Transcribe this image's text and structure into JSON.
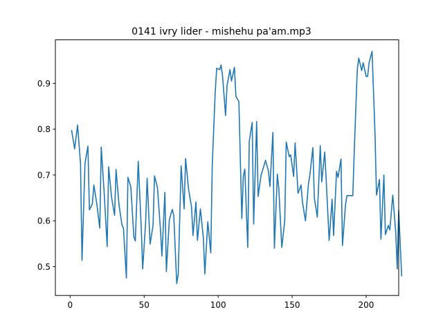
{
  "chart_data": {
    "type": "line",
    "title": "0141 ivry lider - mishehu pa'am.mp3",
    "xlabel": "",
    "ylabel": "",
    "xlim": [
      -10,
      222
    ],
    "ylim": [
      0.437,
      0.995
    ],
    "xticks": [
      0,
      50,
      100,
      150,
      200
    ],
    "yticks": [
      0.5,
      0.6,
      0.7,
      0.8,
      0.9
    ],
    "grid": false,
    "line_color": "#1f77b4",
    "series": [
      {
        "values": [
          0.797,
          0.757,
          0.809,
          0.725,
          0.514,
          0.725,
          0.763,
          0.624,
          0.637,
          0.678,
          0.637,
          0.584,
          0.761,
          0.66,
          0.544,
          0.718,
          0.65,
          0.612,
          0.712,
          0.635,
          0.591,
          0.584,
          0.475,
          0.695,
          0.674,
          0.566,
          0.556,
          0.73,
          0.587,
          0.495,
          0.597,
          0.693,
          0.549,
          0.59,
          0.698,
          0.672,
          0.581,
          0.523,
          0.662,
          0.489,
          0.602,
          0.625,
          0.612,
          0.463,
          0.483,
          0.72,
          0.626,
          0.736,
          0.669,
          0.63,
          0.568,
          0.641,
          0.557,
          0.626,
          0.563,
          0.484,
          0.598,
          0.53,
          0.72,
          0.88,
          0.933,
          0.93,
          0.94,
          0.915,
          0.83,
          0.895,
          0.93,
          0.905,
          0.935,
          0.872,
          0.86,
          0.605,
          0.697,
          0.713,
          0.542,
          0.773,
          0.815,
          0.593,
          0.817,
          0.653,
          0.7,
          0.71,
          0.732,
          0.708,
          0.675,
          0.793,
          0.54,
          0.702,
          0.67,
          0.542,
          0.6,
          0.772,
          0.74,
          0.744,
          0.697,
          0.77,
          0.66,
          0.678,
          0.64,
          0.6,
          0.68,
          0.7,
          0.76,
          0.65,
          0.608,
          0.764,
          0.685,
          0.75,
          0.69,
          0.557,
          0.647,
          0.568,
          0.708,
          0.695,
          0.735,
          0.546,
          0.633,
          0.655,
          0.655,
          0.655,
          0.755,
          0.93,
          0.955,
          0.928,
          0.945,
          0.915,
          0.915,
          0.945,
          0.97,
          0.79,
          0.656,
          0.69,
          0.56,
          0.7,
          0.57,
          0.59,
          0.58,
          0.656,
          0.575,
          0.495,
          0.623,
          0.48
        ],
        "x": [
          1,
          3,
          5,
          7,
          8,
          10,
          12,
          13,
          15,
          16,
          18,
          20,
          21,
          23,
          25,
          26,
          28,
          30,
          31,
          33,
          35,
          36,
          38,
          39,
          41,
          43,
          44,
          46,
          48,
          49,
          51,
          52,
          54,
          56,
          57,
          59,
          61,
          62,
          64,
          65,
          67,
          69,
          70,
          72,
          73,
          75,
          77,
          78,
          80,
          82,
          83,
          85,
          86,
          88,
          90,
          91,
          93,
          95,
          96,
          98,
          99,
          101,
          102,
          103,
          105,
          106,
          108,
          109,
          111,
          112,
          114,
          116,
          117,
          118,
          120,
          121,
          123,
          124,
          126,
          127,
          129,
          130,
          132,
          134,
          135,
          137,
          138,
          140,
          141,
          143,
          145,
          146,
          148,
          149,
          151,
          152,
          154,
          156,
          157,
          159,
          161,
          162,
          164,
          165,
          167,
          169,
          170,
          172,
          173,
          175,
          177,
          178,
          180,
          181,
          183,
          184,
          186,
          187,
          189,
          191,
          192,
          194,
          195,
          197,
          198,
          200,
          201,
          202,
          204,
          206,
          207,
          209,
          210,
          212,
          213,
          215,
          216,
          218,
          220,
          221,
          222,
          224
        ]
      }
    ]
  }
}
